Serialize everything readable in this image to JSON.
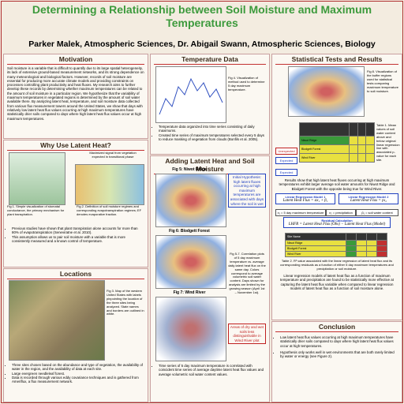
{
  "header": {
    "title": "Determining a Relationship between Soil Moisture and Maximum Temperatures",
    "authors": "Parker Malek,  Atmospheric Sciences,  Dr. Abigail Swann,  Atmospheric Sciences,  Biology"
  },
  "motivation": {
    "heading": "Motivation",
    "body": "Soil moisture is a variable that is difficult to quantify due to its large spatial heterogeneity, its lack of extensive ground-based measurement networks, and its strong dependence on many meteorological and biological factors. However, records of soil moisture are essential for producing more accurate climate models and providing constraints on processes controlling plant productivity and heat fluxes. My research aims to further develop these records by determining whether maximum temperatures can be related to the amount of soil moisture in a particular region. We hypothesize that the variability of maximum temperatures in vegetated regions is determined by the amount of soil water available there. By analyzing latent heat, temperature, and soil moisture data collected from various flux measurement towers around the United States, we show that days with relatively low latent heat flux values occurring at high maximum temperatures have statistically drier soils compared to days where high latent heat flux values occur at high maximum temperatures."
  },
  "latent_heat": {
    "heading": "Why Use Latent Heat?",
    "note": "Maximized signal from vegetation expected in transitional phase",
    "captions": [
      "Fig 1. Simple visualization of stomatal conductance, the primary mechanism for plant transpiration.",
      "Fig 2. Definition of soil moisture regimes and corresponding evapotranspiration regimes; EF denotes evaporative fraction."
    ],
    "bullets": [
      "Previous studies have shown that plant transpiration alone accounts for more than 80% of evapotranspiration (Seneviratne et al. 2010).",
      "This assumption allows us to pair soil moisture with a variable that is more consistently measured and a known control of temperature."
    ]
  },
  "locations": {
    "heading": "Locations",
    "caption": "Fig 3. Map of the western United States with labels pinpointing the location of the three sites being analyzed. State names and borders are outlined in white.",
    "bullets": [
      "Three sites chosen based on the abundance and type of vegetation, the availability of water in the region, and the availability of data at each site.",
      "Large evergreen needleleaf forest.",
      "Data is recorded through various eddy covariance techniques and is gathered from Ameriflux, a flux measurement network."
    ]
  },
  "temperature_data": {
    "heading": "Temperature Data",
    "caption": "Fig 4. Visualization of method used to determine 5 day maximum temperature.",
    "bullets": [
      "Temperature data organized into time series consisting of daily maximums.",
      "Created time series of maximum temperatures selected every 5 days to reduce masking of vegetation from clouds (Bonfils et al. 2005)."
    ]
  },
  "adding": {
    "heading": "Adding Latent Heat and Soil Moisture",
    "plots": [
      "Fig 5: Niwot Ridge",
      "Fig 6: Blodgett Forest",
      "Fig 7: Wind River"
    ],
    "hypothesis": "Initial Hypothesis: high latent fluxes occurring at high maximum temperatures are associated with days where the soil is wet",
    "caption": "Fig 5-7. Correlation plots of 5 day maximum temperature vs. average daily latent heat flux on the same day. Colors correspond to average volumetric soil water content. Days shown for analysis are limited by the growing season (April 1st – November 1st).",
    "callout": "Areas of dry and wet soils less distinguishable in Wind River plot",
    "bullet": "Time series of 5 day maximum temperature is correlated with coincident time series of average daytime latent heat flux values and average volumetric soil water content values."
  },
  "stats": {
    "heading": "Statistical Tests and Results",
    "caption": "Fig 8. Visualization of the buffer regions used for statistical tests comparing maximum temperature to soil moisture.",
    "labels": [
      "Unexpected",
      "Expected",
      "Expected"
    ],
    "table1_caption": "Table 1. Mean values of soil water content above and below original linear regression line with associated p-value for each site.",
    "sites": [
      "Niwot Ridge",
      "Blodgett Forest",
      "Wind River"
    ],
    "results": "Results show that high latent heat fluxes occurring at high maximum temperatures exhibit larger average soil water amounts for Niwot Ridge and Blodgett Forest with the opposite being true for Wind River.",
    "model1_title": "Linear Regression Model 1",
    "model1": "Latent Heat Flux = αx₁ + β₁",
    "model2_title": "Linear Regression Model 2",
    "model2": "Latent Heat Flux = γx₂",
    "legend": [
      "x₁ = 5 day maximum temperature",
      "x₂ = precipitation",
      "β₁ = soil water content"
    ],
    "residual_title": "Residual Calculation",
    "residual": "LHFR = Latent Heat Flux (Obs) − Latent Heat Flux (Model)",
    "table2_header": "Site Name",
    "table2_caption": "Table 2. R² value associated with the linear regression of latent heat flux and its corresponding residuals as a function of either 5 day maximum temperatures and precipitation or soil moisture.",
    "summary": "Linear regression models of latent heat flux as a function of maximum temperature and precipitation are found to be statistically more effective at capturing the latent heat flux variable when compared to linear regression models of latent heat flux as a function of soil moisture alone."
  },
  "conclusion": {
    "heading": "Conclusion",
    "bullets": [
      "Low latent heat flux values occurring at high maximum temperatures have statistically drier soils compared to days where high latent heat flux values occur at high temperatures.",
      "Hypothesis only works well in wet environments that are both rarely limited by water or energy (see Figure 2)."
    ]
  }
}
